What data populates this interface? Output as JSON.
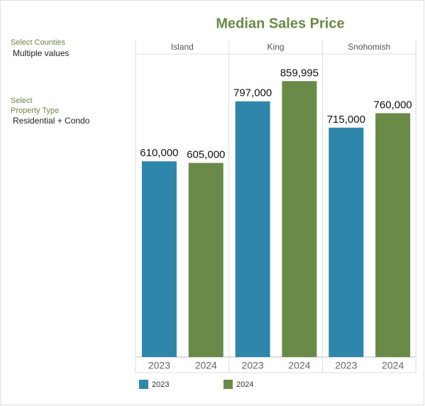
{
  "filters": [
    {
      "label": [
        "Select Counties"
      ],
      "value": "Multiple values"
    },
    {
      "label": [
        "Select",
        "Property Type"
      ],
      "value": "Residential + Condo"
    }
  ],
  "chart_data": {
    "type": "bar",
    "title": "Median Sales Price",
    "categories": [
      "Island",
      "King",
      "Snohomish"
    ],
    "series": [
      {
        "name": "2023",
        "color": "#2e86ab",
        "values": [
          610000,
          797000,
          715000
        ],
        "value_labels": [
          "610,000",
          "797,000",
          "715,000"
        ]
      },
      {
        "name": "2024",
        "color": "#6a8a47",
        "values": [
          605000,
          859995,
          760000
        ],
        "value_labels": [
          "605,000",
          "859,995",
          "760,000"
        ]
      }
    ],
    "ylim": [
      0,
      1000000
    ],
    "title_color": "#6a8a47"
  }
}
